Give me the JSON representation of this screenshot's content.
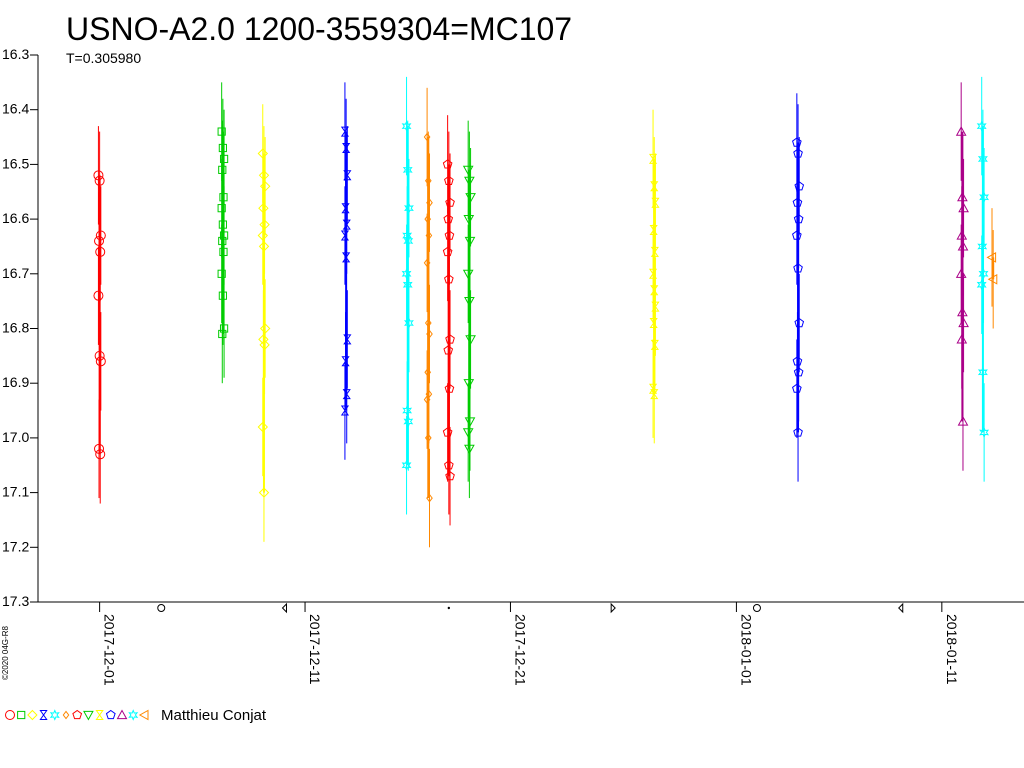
{
  "chart_data": {
    "type": "scatter",
    "title": "USNO-A2.0 1200-3559304=MC107",
    "subtitle": "T=0.305980",
    "copyright": "©2020 04G-R8",
    "observer": "Matthieu Conjat",
    "y_axis": {
      "inverted": true,
      "ylim": [
        17.3,
        16.3
      ],
      "ticks": [
        "16.3",
        "16.4",
        "16.5",
        "16.6",
        "16.7",
        "16.8",
        "16.9",
        "17.0",
        "17.1",
        "17.2",
        "17.3"
      ]
    },
    "x_axis": {
      "start": "2017-11-28",
      "end": "2018-01-15",
      "ticks": [
        "2017-12-01",
        "2017-12-11",
        "2017-12-21",
        "2018-01-01",
        "2018-01-11"
      ]
    },
    "moon_phases": [
      {
        "date": "2017-12-04",
        "phase": "full"
      },
      {
        "date": "2017-12-10",
        "phase": "last-quarter"
      },
      {
        "date": "2017-12-18",
        "phase": "new"
      },
      {
        "date": "2017-12-26",
        "phase": "first-quarter"
      },
      {
        "date": "2018-01-02",
        "phase": "full"
      },
      {
        "date": "2018-01-09",
        "phase": "last-quarter"
      }
    ],
    "legend_symbols": [
      "circle",
      "square",
      "diamond",
      "hourglass",
      "star",
      "diamond-small",
      "pentagon",
      "triangle-down",
      "hourglass",
      "pentagon",
      "triangle-up",
      "star",
      "triangle-left"
    ],
    "legend_colors": [
      "#ff0000",
      "#00cc00",
      "#ffff00",
      "#0000ff",
      "#00ffff",
      "#ff8800",
      "#ff0000",
      "#00cc00",
      "#ffff00",
      "#0000ff",
      "#aa0088",
      "#00ffff",
      "#ff8800"
    ],
    "series": [
      {
        "date": "2017-12-01",
        "color": "#ff0000",
        "symbol": "circle",
        "values": [
          16.52,
          16.53,
          16.63,
          16.64,
          16.66,
          16.74,
          16.85,
          16.86,
          17.02,
          17.03
        ]
      },
      {
        "date": "2017-12-07",
        "color": "#00cc00",
        "symbol": "square",
        "values": [
          16.44,
          16.47,
          16.49,
          16.51,
          16.56,
          16.58,
          16.61,
          16.63,
          16.64,
          16.66,
          16.7,
          16.74,
          16.8,
          16.81
        ]
      },
      {
        "date": "2017-12-09",
        "color": "#ffff00",
        "symbol": "diamond",
        "values": [
          16.48,
          16.52,
          16.54,
          16.58,
          16.61,
          16.63,
          16.65,
          16.8,
          16.82,
          16.83,
          16.98,
          17.1
        ]
      },
      {
        "date": "2017-12-13",
        "color": "#0000ff",
        "symbol": "hourglass",
        "values": [
          16.44,
          16.47,
          16.52,
          16.58,
          16.61,
          16.63,
          16.67,
          16.82,
          16.86,
          16.92,
          16.95
        ]
      },
      {
        "date": "2017-12-16",
        "color": "#00ffff",
        "symbol": "star",
        "values": [
          16.43,
          16.51,
          16.58,
          16.63,
          16.64,
          16.7,
          16.72,
          16.79,
          16.95,
          16.97,
          17.05
        ]
      },
      {
        "date": "2017-12-17",
        "color": "#ff8800",
        "symbol": "diamond-small",
        "values": [
          16.45,
          16.53,
          16.57,
          16.6,
          16.63,
          16.68,
          16.79,
          16.81,
          16.88,
          16.92,
          16.93,
          17.0,
          17.11
        ]
      },
      {
        "date": "2017-12-18",
        "color": "#ff0000",
        "symbol": "pentagon",
        "values": [
          16.5,
          16.53,
          16.57,
          16.6,
          16.63,
          16.66,
          16.71,
          16.82,
          16.84,
          16.91,
          16.99,
          17.05,
          17.07
        ]
      },
      {
        "date": "2017-12-19",
        "color": "#00cc00",
        "symbol": "triangle-down",
        "values": [
          16.51,
          16.53,
          16.56,
          16.6,
          16.64,
          16.7,
          16.75,
          16.82,
          16.9,
          16.97,
          16.99,
          17.02
        ]
      },
      {
        "date": "2017-12-28",
        "color": "#ffff00",
        "symbol": "hourglass",
        "values": [
          16.49,
          16.54,
          16.57,
          16.62,
          16.66,
          16.7,
          16.73,
          16.76,
          16.79,
          16.83,
          16.91,
          16.92
        ]
      },
      {
        "date": "2018-01-04",
        "color": "#0000ff",
        "symbol": "pentagon",
        "values": [
          16.46,
          16.48,
          16.54,
          16.57,
          16.6,
          16.63,
          16.69,
          16.79,
          16.86,
          16.88,
          16.91,
          16.99
        ]
      },
      {
        "date": "2018-01-12",
        "color": "#aa0088",
        "symbol": "triangle-up",
        "values": [
          16.44,
          16.56,
          16.58,
          16.63,
          16.65,
          16.7,
          16.77,
          16.79,
          16.82,
          16.97
        ]
      },
      {
        "date": "2018-01-13",
        "color": "#00ffff",
        "symbol": "star",
        "values": [
          16.43,
          16.49,
          16.56,
          16.65,
          16.7,
          16.72,
          16.88,
          16.99
        ]
      },
      {
        "date": "2018-01-13.5",
        "color": "#ff8800",
        "symbol": "triangle-left",
        "values": [
          16.67,
          16.71
        ]
      }
    ]
  }
}
